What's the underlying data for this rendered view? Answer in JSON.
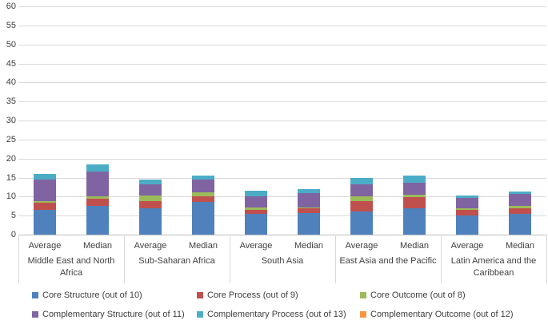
{
  "chart_data": {
    "type": "bar",
    "stacked": true,
    "title": "",
    "xlabel": "",
    "ylabel": "",
    "ylim": [
      0,
      60
    ],
    "yticks": [
      0,
      5,
      10,
      15,
      20,
      25,
      30,
      35,
      40,
      45,
      50,
      55,
      60
    ],
    "grid": true,
    "legend_position": "bottom",
    "groups": [
      "Middle East and North Africa",
      "Sub-Saharan Africa",
      "South Asia",
      "East Asia and the Pacific",
      "Latin America and the Caribbean"
    ],
    "sublabels": [
      "Average",
      "Median"
    ],
    "columns": [
      "Middle East and North Africa - Average",
      "Middle East and North Africa - Median",
      "Sub-Saharan Africa - Average",
      "Sub-Saharan Africa - Median",
      "South Asia - Average",
      "South Asia - Median",
      "East Asia and the Pacific - Average",
      "East Asia and the Pacific - Median",
      "Latin America and the Caribbean - Average",
      "Latin America and the Caribbean - Median"
    ],
    "series": [
      {
        "name": "Core Structure (out of 10)",
        "color": "#4F81BD",
        "values": [
          6.5,
          7.5,
          7.0,
          8.6,
          5.4,
          5.6,
          6.1,
          6.9,
          5.0,
          5.5
        ]
      },
      {
        "name": "Core Process (out of 9)",
        "color": "#C0504D",
        "values": [
          1.8,
          2.0,
          1.8,
          1.4,
          1.2,
          1.4,
          2.8,
          2.9,
          1.5,
          1.5
        ]
      },
      {
        "name": "Core Outcome (out of 8)",
        "color": "#9BBB59",
        "values": [
          0.5,
          0.6,
          1.5,
          1.2,
          0.5,
          0.1,
          1.2,
          0.6,
          0.5,
          0.5
        ]
      },
      {
        "name": "Complementary Structure (out of 11)",
        "color": "#8064A2",
        "values": [
          5.7,
          6.4,
          3.0,
          3.3,
          3.0,
          3.9,
          3.2,
          3.3,
          2.6,
          3.1
        ]
      },
      {
        "name": "Complementary Process (out of 13)",
        "color": "#4BACC6",
        "values": [
          1.5,
          2.0,
          1.2,
          1.0,
          1.4,
          1.0,
          1.7,
          1.8,
          0.7,
          0.8
        ]
      },
      {
        "name": "Complementary Outcome (out of 12)",
        "color": "#F79646",
        "values": [
          0,
          0,
          0,
          0,
          0,
          0,
          0,
          0,
          0,
          0
        ]
      }
    ],
    "totals": [
      16.0,
      18.5,
      14.5,
      15.5,
      11.5,
      12.0,
      15.0,
      15.5,
      10.3,
      11.4
    ]
  },
  "colors": {
    "gridline": "#D9D9D9",
    "axis": "#BFBFBF",
    "separator": "#D9D9D9",
    "text": "#404040",
    "background": "#FFFFFF"
  }
}
